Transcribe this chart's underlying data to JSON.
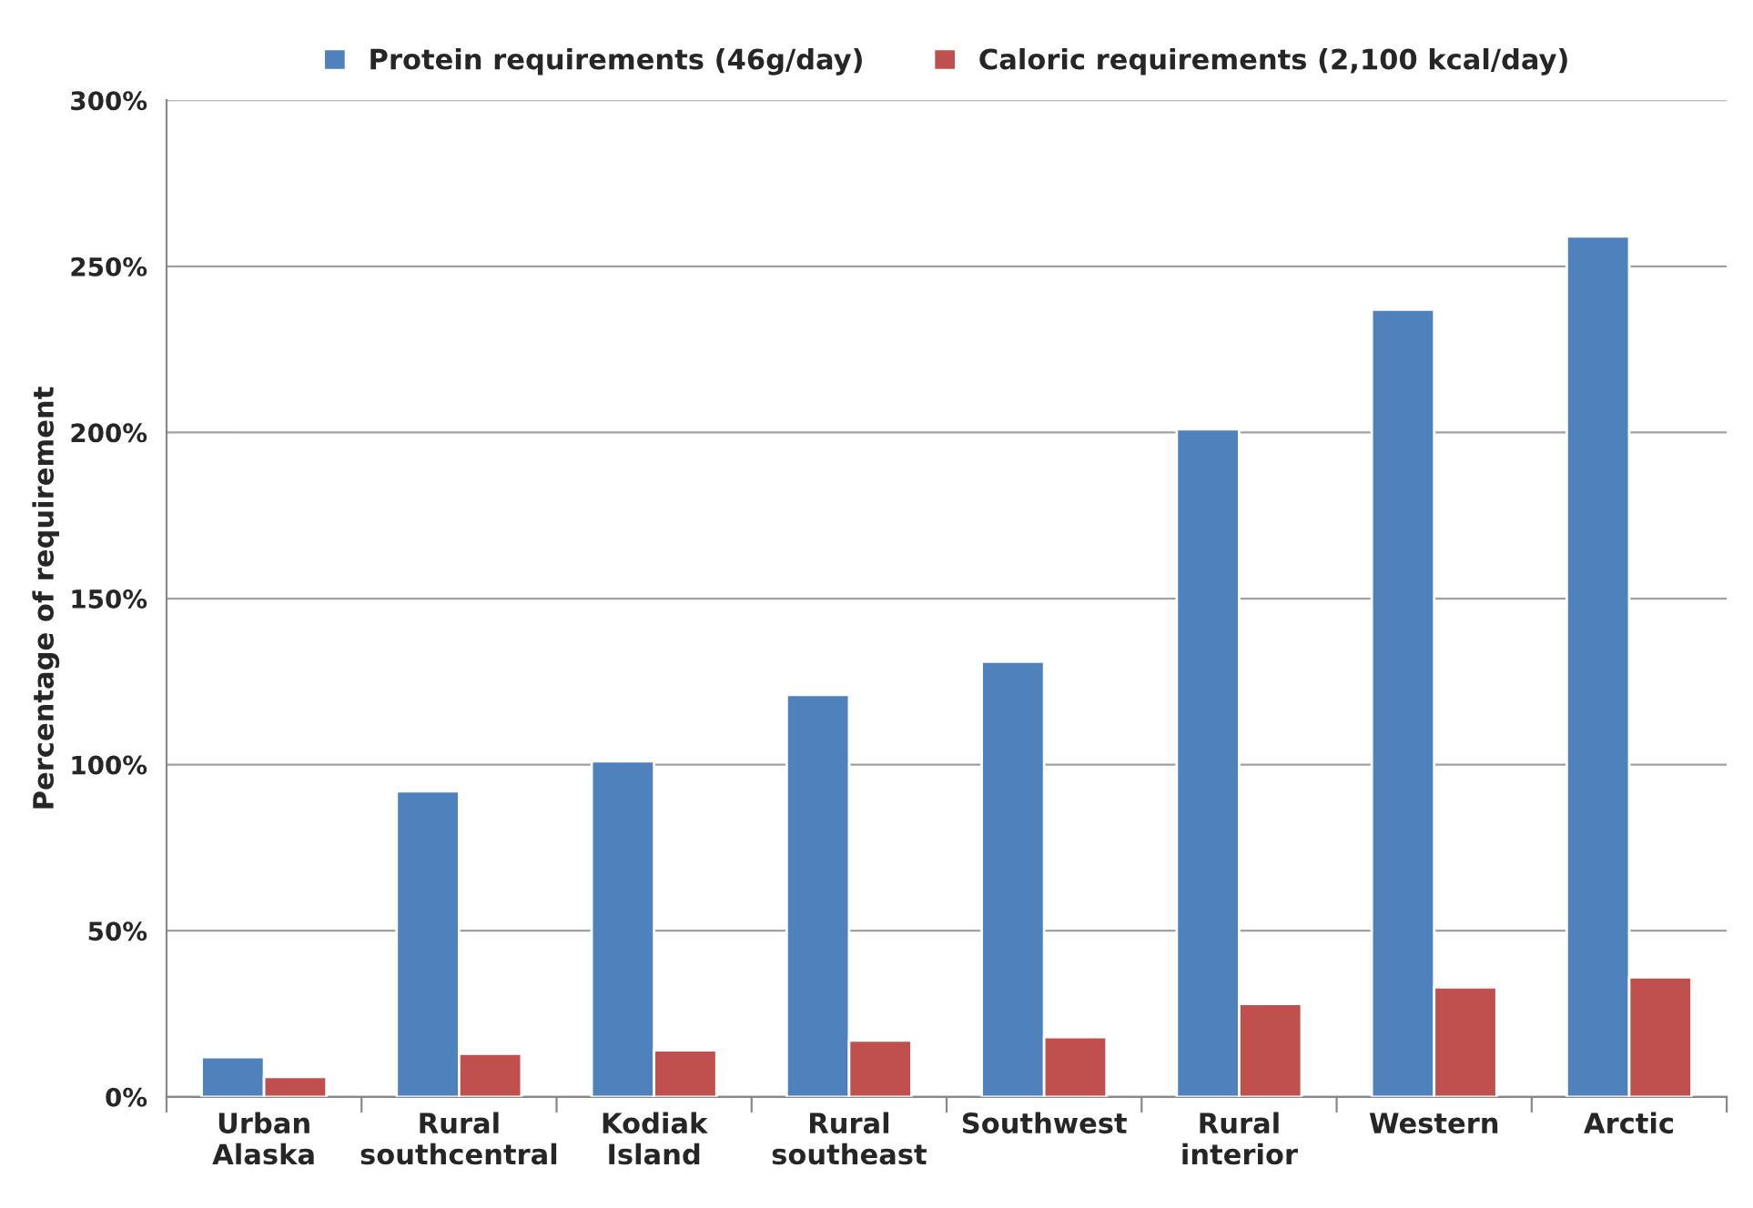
{
  "chart_data": {
    "type": "bar",
    "ylabel": "Percentage of requirement",
    "categories": [
      "Urban\nAlaska",
      "Rural\nsouthcentral",
      "Kodiak\nIsland",
      "Rural\nsoutheast",
      "Southwest",
      "Rural\ninterior",
      "Western",
      "Arctic"
    ],
    "series": [
      {
        "name": "Protein requirements (46g/day)",
        "color": "#4f81bd",
        "values": [
          12,
          92,
          101,
          121,
          131,
          201,
          237,
          259
        ]
      },
      {
        "name": "Caloric requirements (2,100 kcal/day)",
        "color": "#c0504d",
        "values": [
          6,
          13,
          14,
          17,
          18,
          28,
          33,
          36
        ]
      }
    ],
    "ylim": [
      0,
      300
    ],
    "yticks": [
      {
        "value": 0,
        "label": "0%"
      },
      {
        "value": 50,
        "label": "50%"
      },
      {
        "value": 100,
        "label": "100%"
      },
      {
        "value": 150,
        "label": "150%"
      },
      {
        "value": 200,
        "label": "200%"
      },
      {
        "value": 250,
        "label": "250%"
      },
      {
        "value": 300,
        "label": "300%"
      }
    ],
    "grid": "y",
    "legend": "top"
  }
}
